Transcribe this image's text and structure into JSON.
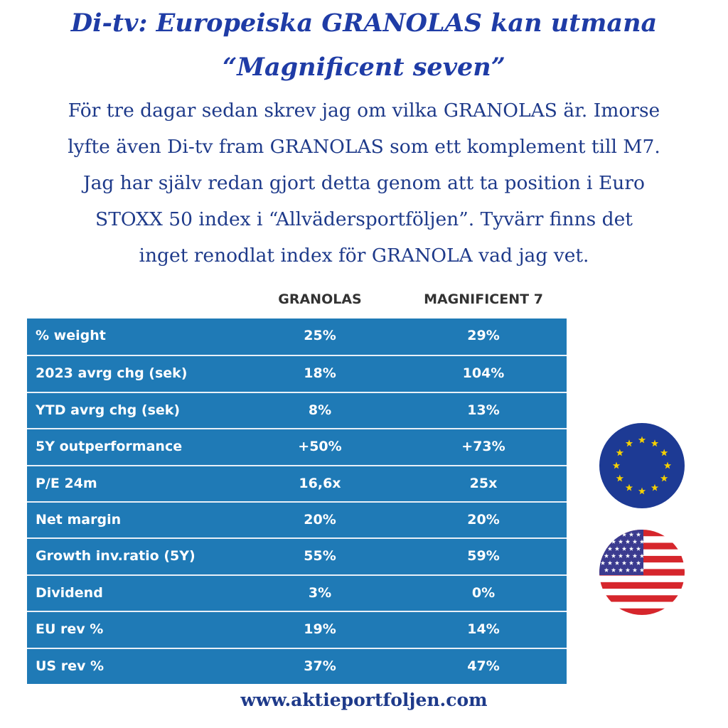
{
  "header": {
    "title_lines": [
      "Di-tv: Europeiska GRANOLAS kan utmana",
      "“Magnificent seven”"
    ]
  },
  "body": {
    "lines": [
      "För tre dagar sedan skrev jag om vilka GRANOLAS är. Imorse",
      "lyfte även Di-tv fram GRANOLAS som ett komplement till M7.",
      "Jag har själv redan gjort detta genom att ta position i Euro",
      "STOXX 50 index i “Allvädersportföljen”. Tyvärr finns det",
      "inget renodlat index för GRANOLA vad jag vet."
    ]
  },
  "table": {
    "columns": [
      "GRANOLAS",
      "MAGNIFICENT 7"
    ],
    "rows": [
      [
        "% weight",
        "25%",
        "29%"
      ],
      [
        "2023 avrg chg (sek)",
        "18%",
        "104%"
      ],
      [
        "YTD avrg chg (sek)",
        "8%",
        "13%"
      ],
      [
        "5Y outperformance",
        "+50%",
        "+73%"
      ],
      [
        "P/E 24m",
        "16,6x",
        "25x"
      ],
      [
        "Net margin",
        "20%",
        "20%"
      ],
      [
        "Growth inv.ratio (5Y)",
        "55%",
        "59%"
      ],
      [
        "Dividend",
        "3%",
        "0%"
      ],
      [
        "EU rev %",
        "19%",
        "14%"
      ],
      [
        "US rev %",
        "37%",
        "47%"
      ]
    ]
  },
  "footer": {
    "url": "www.aktieportfoljen.com"
  }
}
